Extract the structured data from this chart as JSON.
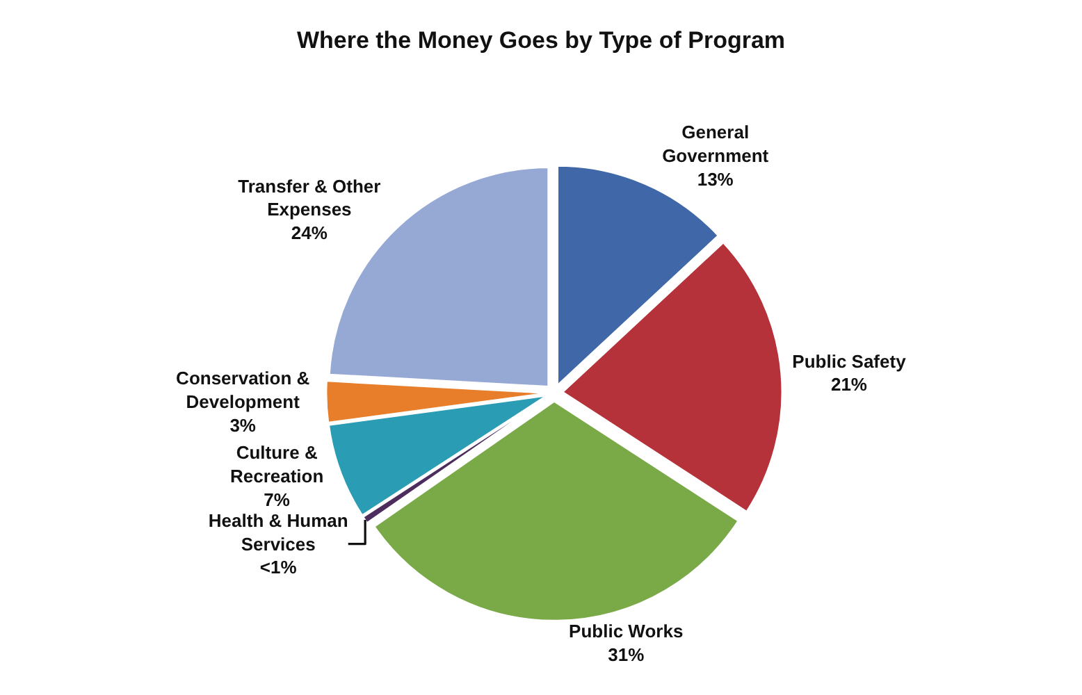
{
  "chart_data": {
    "type": "pie",
    "title": "Where the Money Goes by Type of Program",
    "categories": [
      "General Government",
      "Public Safety",
      "Public Works",
      "Health & Human Services",
      "Culture & Recreation",
      "Conservation & Development",
      "Transfer & Other Expenses"
    ],
    "values": [
      13,
      21,
      31,
      0.5,
      7,
      3,
      24
    ],
    "value_labels": [
      "13%",
      "21%",
      "31%",
      "<1%",
      "7%",
      "3%",
      "24%"
    ],
    "colors": [
      "#4068a8",
      "#b5323b",
      "#7aaa48",
      "#4d2c5e",
      "#2a9db5",
      "#e87d2a",
      "#95a9d4"
    ]
  }
}
